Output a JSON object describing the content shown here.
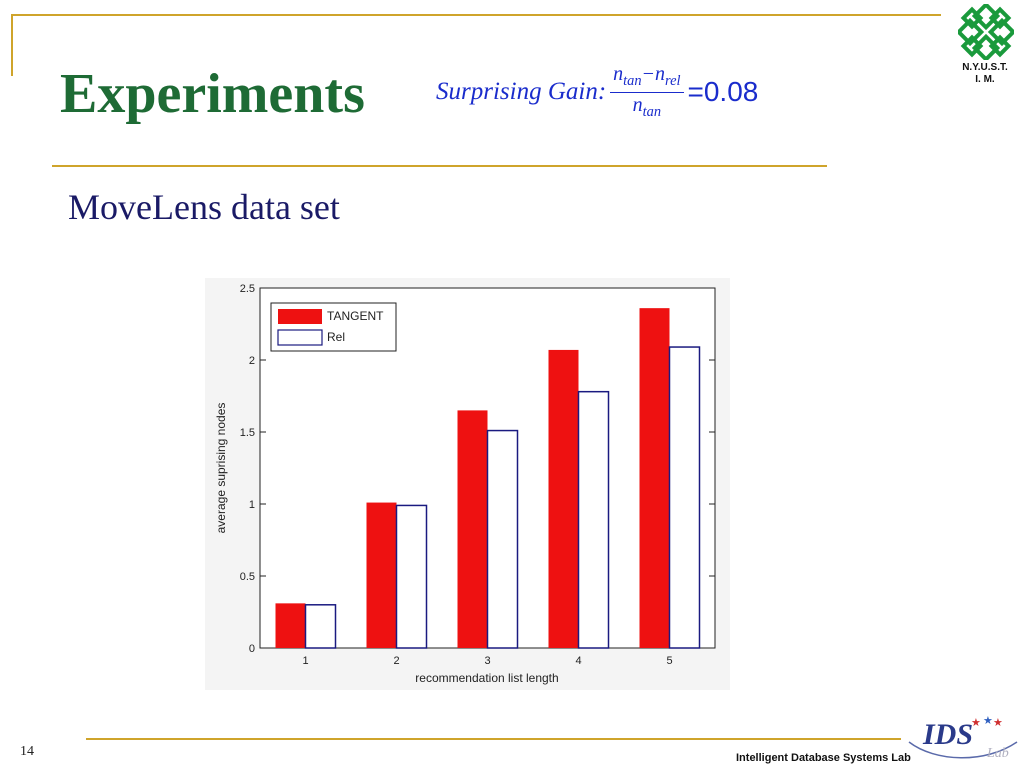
{
  "slide": {
    "title": "Experiments",
    "formula": {
      "label": "Surprising Gain:",
      "numerator": {
        "n1": "n",
        "s1": "tan",
        "minus": "−",
        "n2": "n",
        "s2": "rel"
      },
      "denominator": {
        "n": "n",
        "s": "tan"
      },
      "value": "=0.08"
    },
    "subtitle": "MoveLens data set",
    "institution": {
      "line1": "N.Y.U.S.T.",
      "line2": "I. M."
    },
    "page_number": "14",
    "footer": "Intelligent Database Systems Lab",
    "footer_logo_text": "IDS",
    "footer_logo_sub": "Lab"
  },
  "colors": {
    "tangent": "#ee1111",
    "rel": "#1a1a80",
    "title": "#1e6b35",
    "formula": "#1a2ccc",
    "rule": "#cfa42b",
    "logo": "#1a9a3c"
  },
  "chart_data": {
    "type": "bar",
    "categories": [
      "1",
      "2",
      "3",
      "4",
      "5"
    ],
    "series": [
      {
        "name": "TANGENT",
        "values": [
          0.31,
          1.01,
          1.65,
          2.07,
          2.36
        ]
      },
      {
        "name": "Rel",
        "values": [
          0.3,
          0.99,
          1.51,
          1.78,
          2.09
        ]
      }
    ],
    "xlabel": "recommendation list length",
    "ylabel": "average suprising nodes",
    "ylim": [
      0,
      2.5
    ],
    "yticks": [
      "0",
      "0.5",
      "1",
      "1.5",
      "2",
      "2.5"
    ],
    "legend_position": "top-left",
    "grid": false
  }
}
